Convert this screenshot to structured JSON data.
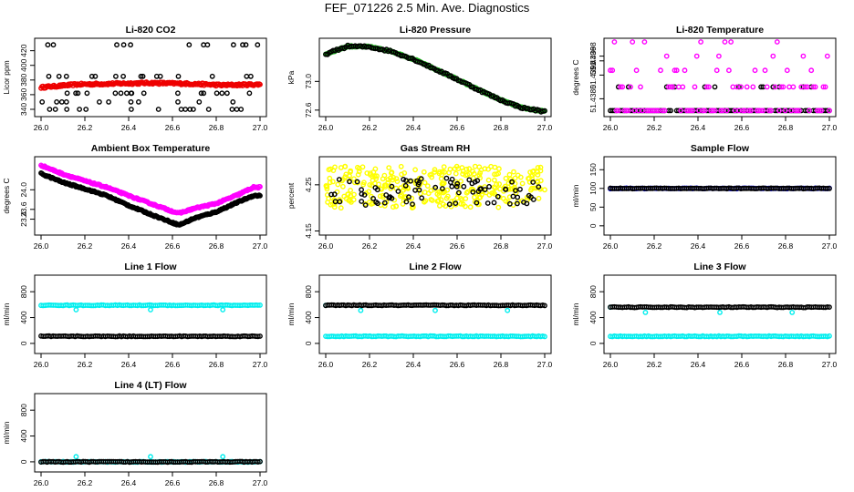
{
  "figure": {
    "title": "FEF_071226  2.5 Min. Ave. Diagnostics"
  },
  "colors": {
    "black": "#000000",
    "red": "#ee0000",
    "green": "#22bb22",
    "magenta": "#ff00ff",
    "yellow": "#ffff00",
    "blue": "#0000dd",
    "cyan": "#00eeee"
  },
  "chart_data": [
    {
      "type": "scatter",
      "title": "Li-820 CO2",
      "xlabel": "",
      "ylabel": "Licor ppm",
      "xlim": [
        26.0,
        27.0
      ],
      "ylim": [
        335,
        432
      ],
      "x_ticks": [
        "26.0",
        "26.2",
        "26.4",
        "26.6",
        "26.8",
        "27.0"
      ],
      "y_ticks": [
        "340",
        "360",
        "380",
        "400",
        "420"
      ],
      "series": [
        {
          "name": "red",
          "color": "red",
          "kind": "band",
          "values": [
            370,
            374,
            375,
            376,
            375,
            373,
            374
          ]
        },
        {
          "name": "black",
          "color": "black",
          "kind": "scatter-random",
          "levels": [
            340,
            350,
            362,
            385,
            428
          ]
        }
      ]
    },
    {
      "type": "scatter",
      "title": "Li-820 Pressure",
      "xlabel": "",
      "ylabel": "kPa",
      "xlim": [
        26.0,
        27.0
      ],
      "ylim": [
        72.56,
        73.55
      ],
      "x_ticks": [
        "26.0",
        "26.2",
        "26.4",
        "26.6",
        "26.8",
        "27.0"
      ],
      "y_ticks": [
        "72.6",
        "73.0"
      ],
      "series": [
        {
          "name": "green",
          "color": "green",
          "kind": "curve",
          "x": [
            26.0,
            26.1,
            26.2,
            26.3,
            26.4,
            26.5,
            26.6,
            26.7,
            26.8,
            26.9,
            27.0
          ],
          "values": [
            73.38,
            73.49,
            73.48,
            73.42,
            73.31,
            73.17,
            73.03,
            72.88,
            72.74,
            72.63,
            72.58
          ]
        },
        {
          "name": "black",
          "color": "black",
          "kind": "follow"
        }
      ]
    },
    {
      "type": "scatter",
      "title": "Li-820 Temperature",
      "xlabel": "",
      "ylabel": "degrees C",
      "xlim": [
        26.0,
        27.0
      ],
      "ylim": [
        51.4374,
        51.4404
      ],
      "x_ticks": [
        "26.0",
        "26.2",
        "26.4",
        "26.6",
        "26.8",
        "27.0"
      ],
      "y_ticks": [
        "51.4380",
        "51.4390",
        "51.4396",
        "51.4398"
      ],
      "series": [
        {
          "name": "black",
          "color": "black",
          "kind": "levels",
          "levels": [
            51.4375,
            51.4385
          ],
          "weights": [
            0.85,
            0.15
          ]
        },
        {
          "name": "magenta",
          "color": "magenta",
          "kind": "levels",
          "levels": [
            51.4375,
            51.4385,
            51.4392,
            51.4398,
            51.4404
          ],
          "weights": [
            0.45,
            0.3,
            0.1,
            0.1,
            0.05
          ]
        }
      ]
    },
    {
      "type": "scatter",
      "title": "Ambient Box Temperature",
      "xlabel": "",
      "ylabel": "degrees C",
      "xlim": [
        26.0,
        27.0
      ],
      "ylim": [
        23.15,
        24.6
      ],
      "x_ticks": [
        "26.0",
        "26.2",
        "26.4",
        "26.6",
        "26.8",
        "27.0"
      ],
      "y_ticks": [
        "23.4",
        "23.6",
        "24.0"
      ],
      "series": [
        {
          "name": "magenta",
          "color": "magenta",
          "kind": "curve",
          "x": [
            26.0,
            26.1,
            26.2,
            26.3,
            26.4,
            26.5,
            26.6,
            26.63,
            26.7,
            26.8,
            26.9,
            26.97
          ],
          "values": [
            24.5,
            24.32,
            24.18,
            24.05,
            23.88,
            23.72,
            23.56,
            23.52,
            23.62,
            23.72,
            23.9,
            24.05
          ]
        },
        {
          "name": "black",
          "color": "black",
          "kind": "curve",
          "x": [
            26.0,
            26.1,
            26.2,
            26.3,
            26.4,
            26.5,
            26.6,
            26.63,
            26.7,
            26.8,
            26.9,
            26.97
          ],
          "values": [
            24.33,
            24.15,
            24.02,
            23.88,
            23.68,
            23.5,
            23.33,
            23.28,
            23.42,
            23.55,
            23.75,
            23.88
          ]
        }
      ]
    },
    {
      "type": "scatter",
      "title": "Gas Stream RH",
      "xlabel": "",
      "ylabel": "percent",
      "xlim": [
        26.0,
        27.0
      ],
      "ylim": [
        4.149,
        4.303
      ],
      "x_ticks": [
        "26.0",
        "26.2",
        "26.4",
        "26.6",
        "26.8",
        "27.0"
      ],
      "y_ticks": [
        "4.15",
        "4.25"
      ],
      "series": [
        {
          "name": "yellow",
          "color": "yellow",
          "kind": "noise",
          "center": 4.245,
          "spread": 0.045
        },
        {
          "name": "black",
          "color": "black",
          "kind": "noise",
          "center": 4.235,
          "spread": 0.03
        }
      ]
    },
    {
      "type": "scatter",
      "title": "Sample Flow",
      "xlabel": "",
      "ylabel": "ml/min",
      "xlim": [
        26.0,
        27.0
      ],
      "ylim": [
        -15,
        175
      ],
      "x_ticks": [
        "26.0",
        "26.2",
        "26.4",
        "26.6",
        "26.8",
        "27.0"
      ],
      "y_ticks": [
        "0",
        "50",
        "100",
        "150"
      ],
      "series": [
        {
          "name": "blue",
          "color": "blue",
          "kind": "const",
          "value": 100
        },
        {
          "name": "black",
          "color": "black",
          "kind": "const",
          "value": 100
        }
      ]
    },
    {
      "type": "scatter",
      "title": "Line 1 Flow",
      "xlabel": "",
      "ylabel": "ml/min",
      "xlim": [
        26.0,
        27.0
      ],
      "ylim": [
        -100,
        1000
      ],
      "x_ticks": [
        "26.0",
        "26.2",
        "26.4",
        "26.6",
        "26.8",
        "27.0"
      ],
      "y_ticks": [
        "0",
        "400",
        "800"
      ],
      "series": [
        {
          "name": "cyan",
          "color": "cyan",
          "kind": "const",
          "value": 590,
          "outliers": [
            [
              26.16,
              520
            ],
            [
              26.5,
              520
            ],
            [
              26.83,
              520
            ]
          ]
        },
        {
          "name": "black",
          "color": "black",
          "kind": "const",
          "value": 110
        }
      ]
    },
    {
      "type": "scatter",
      "title": "Line 2 Flow",
      "xlabel": "",
      "ylabel": "ml/min",
      "xlim": [
        26.0,
        27.0
      ],
      "ylim": [
        -100,
        1000
      ],
      "x_ticks": [
        "26.0",
        "26.2",
        "26.4",
        "26.6",
        "26.8",
        "27.0"
      ],
      "y_ticks": [
        "0",
        "400",
        "800"
      ],
      "series": [
        {
          "name": "cyan",
          "color": "cyan",
          "kind": "const",
          "value": 110,
          "outliers": [
            [
              26.0,
              590
            ],
            [
              26.16,
              510
            ],
            [
              26.5,
              510
            ],
            [
              26.83,
              510
            ]
          ]
        },
        {
          "name": "black",
          "color": "black",
          "kind": "const",
          "value": 590
        }
      ]
    },
    {
      "type": "scatter",
      "title": "Line 3 Flow",
      "xlabel": "",
      "ylabel": "ml/min",
      "xlim": [
        26.0,
        27.0
      ],
      "ylim": [
        -100,
        1000
      ],
      "x_ticks": [
        "26.0",
        "26.2",
        "26.4",
        "26.6",
        "26.8",
        "27.0"
      ],
      "y_ticks": [
        "0",
        "400",
        "800"
      ],
      "series": [
        {
          "name": "cyan",
          "color": "cyan",
          "kind": "const",
          "value": 110,
          "outliers": [
            [
              26.0,
              560
            ],
            [
              26.16,
              480
            ],
            [
              26.5,
              480
            ],
            [
              26.83,
              480
            ]
          ]
        },
        {
          "name": "black",
          "color": "black",
          "kind": "const",
          "value": 560
        }
      ]
    },
    {
      "type": "scatter",
      "title": "Line 4 (LT) Flow",
      "xlabel": "",
      "ylabel": "ml/min",
      "xlim": [
        26.0,
        27.0
      ],
      "ylim": [
        -100,
        1000
      ],
      "x_ticks": [
        "26.0",
        "26.2",
        "26.4",
        "26.6",
        "26.8",
        "27.0"
      ],
      "y_ticks": [
        "0",
        "400",
        "800"
      ],
      "series": [
        {
          "name": "cyan",
          "color": "cyan",
          "kind": "const",
          "value": 0,
          "outliers": [
            [
              26.16,
              80
            ],
            [
              26.5,
              80
            ],
            [
              26.83,
              80
            ]
          ]
        },
        {
          "name": "black",
          "color": "black",
          "kind": "const",
          "value": 0
        }
      ]
    }
  ]
}
